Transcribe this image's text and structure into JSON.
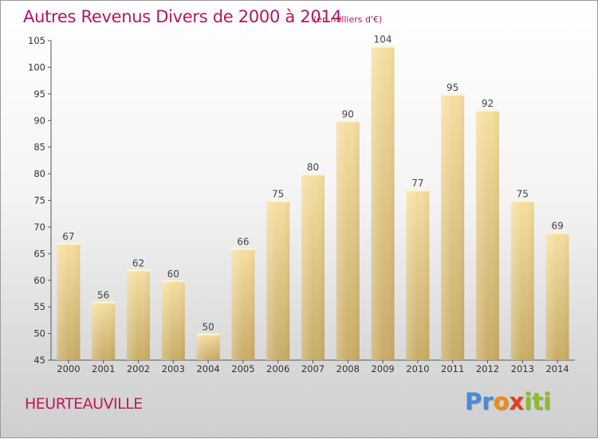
{
  "header": {
    "title": "Autres Revenus Divers de 2000 à 2014",
    "unit": "(en milliers d'€)"
  },
  "footer": {
    "commune": "HEURTEAUVILLE",
    "logo": [
      "P",
      "r",
      "o",
      "x",
      "i",
      "t",
      "i"
    ]
  },
  "colors": {
    "title": "#b0185a",
    "bar_light": "#f6dfa0",
    "bar_dark": "#c8ac68",
    "logo": [
      "#4a8ad8",
      "#4a8ad8",
      "#f08a18",
      "#e0401a",
      "#8abf28",
      "#8abf28",
      "#8abf28"
    ]
  },
  "chart_data": {
    "type": "bar",
    "categories": [
      "2000",
      "2001",
      "2002",
      "2003",
      "2004",
      "2005",
      "2006",
      "2007",
      "2008",
      "2009",
      "2010",
      "2011",
      "2012",
      "2013",
      "2014"
    ],
    "values": [
      67,
      56,
      62,
      60,
      50,
      66,
      75,
      80,
      90,
      104,
      77,
      95,
      92,
      75,
      69
    ],
    "title": "Autres Revenus Divers de 2000 à 2014",
    "subtitle": "(en milliers d'€)",
    "ylim": [
      45,
      105
    ],
    "yticks": [
      45,
      50,
      55,
      60,
      65,
      70,
      75,
      80,
      85,
      90,
      95,
      100,
      105
    ],
    "grid": false,
    "data_labels": true
  }
}
